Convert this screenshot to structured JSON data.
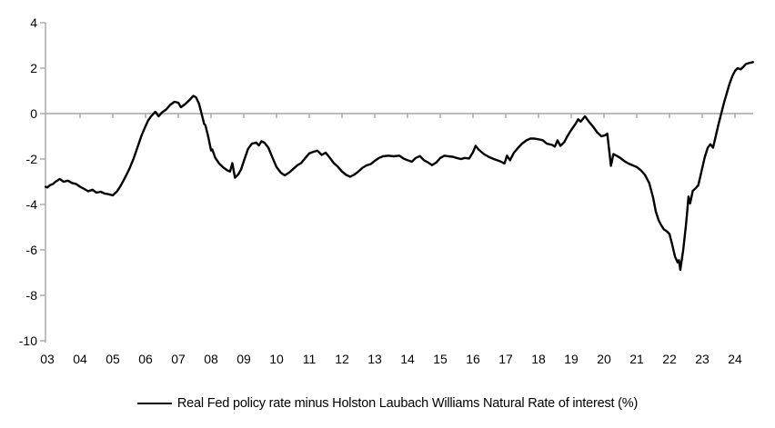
{
  "legend": {
    "label": "Real Fed policy rate minus Holston Laubach Williams Natural Rate of interest (%)"
  },
  "chart_data": {
    "type": "line",
    "title": "",
    "xlabel": "",
    "ylabel": "",
    "ylim": [
      -10,
      4
    ],
    "xlim": [
      2002.94,
      2024.6
    ],
    "grid": false,
    "zero_line": true,
    "legend_position": "bottom",
    "axis_color": "#a6a6a6",
    "text_color": "#000000",
    "y_ticks": [
      "4",
      "2",
      "0",
      "-2",
      "-4",
      "-6",
      "-8",
      "-10"
    ],
    "y_tick_values": [
      4,
      2,
      0,
      -2,
      -4,
      -6,
      -8,
      -10
    ],
    "x_tick_labels": [
      "03",
      "04",
      "05",
      "06",
      "07",
      "08",
      "09",
      "10",
      "11",
      "12",
      "13",
      "14",
      "15",
      "16",
      "17",
      "18",
      "19",
      "20",
      "21",
      "22",
      "23",
      "24"
    ],
    "x_tick_years": [
      2003,
      2004,
      2005,
      2006,
      2007,
      2008,
      2009,
      2010,
      2011,
      2012,
      2013,
      2014,
      2015,
      2016,
      2017,
      2018,
      2019,
      2020,
      2021,
      2022,
      2023,
      2024
    ],
    "series": [
      {
        "name": "Real Fed policy rate minus Holston Laubach Williams Natural Rate of interest (%)",
        "color": "#000000",
        "points": [
          [
            2002.95,
            -3.22
          ],
          [
            2003.0,
            -3.25
          ],
          [
            2003.08,
            -3.15
          ],
          [
            2003.17,
            -3.1
          ],
          [
            2003.25,
            -3.0
          ],
          [
            2003.38,
            -2.88
          ],
          [
            2003.5,
            -3.0
          ],
          [
            2003.63,
            -2.95
          ],
          [
            2003.75,
            -3.05
          ],
          [
            2003.88,
            -3.1
          ],
          [
            2004.0,
            -3.22
          ],
          [
            2004.13,
            -3.32
          ],
          [
            2004.25,
            -3.42
          ],
          [
            2004.38,
            -3.35
          ],
          [
            2004.5,
            -3.48
          ],
          [
            2004.63,
            -3.44
          ],
          [
            2004.75,
            -3.52
          ],
          [
            2004.88,
            -3.55
          ],
          [
            2005.0,
            -3.6
          ],
          [
            2005.13,
            -3.42
          ],
          [
            2005.25,
            -3.15
          ],
          [
            2005.38,
            -2.8
          ],
          [
            2005.5,
            -2.45
          ],
          [
            2005.63,
            -2.0
          ],
          [
            2005.75,
            -1.5
          ],
          [
            2005.88,
            -0.95
          ],
          [
            2006.0,
            -0.55
          ],
          [
            2006.08,
            -0.3
          ],
          [
            2006.17,
            -0.12
          ],
          [
            2006.3,
            0.08
          ],
          [
            2006.4,
            -0.12
          ],
          [
            2006.5,
            0.05
          ],
          [
            2006.63,
            0.18
          ],
          [
            2006.75,
            0.38
          ],
          [
            2006.88,
            0.52
          ],
          [
            2007.0,
            0.48
          ],
          [
            2007.08,
            0.28
          ],
          [
            2007.21,
            0.42
          ],
          [
            2007.33,
            0.58
          ],
          [
            2007.46,
            0.78
          ],
          [
            2007.54,
            0.72
          ],
          [
            2007.63,
            0.45
          ],
          [
            2007.71,
            0.0
          ],
          [
            2007.79,
            -0.45
          ],
          [
            2007.83,
            -0.52
          ],
          [
            2007.92,
            -1.05
          ],
          [
            2008.0,
            -1.62
          ],
          [
            2008.04,
            -1.58
          ],
          [
            2008.13,
            -1.95
          ],
          [
            2008.25,
            -2.2
          ],
          [
            2008.38,
            -2.38
          ],
          [
            2008.5,
            -2.5
          ],
          [
            2008.58,
            -2.55
          ],
          [
            2008.65,
            -2.18
          ],
          [
            2008.73,
            -2.82
          ],
          [
            2008.83,
            -2.68
          ],
          [
            2008.92,
            -2.45
          ],
          [
            2009.0,
            -2.1
          ],
          [
            2009.13,
            -1.55
          ],
          [
            2009.25,
            -1.32
          ],
          [
            2009.38,
            -1.28
          ],
          [
            2009.46,
            -1.4
          ],
          [
            2009.54,
            -1.22
          ],
          [
            2009.63,
            -1.28
          ],
          [
            2009.75,
            -1.5
          ],
          [
            2009.88,
            -1.95
          ],
          [
            2010.0,
            -2.35
          ],
          [
            2010.13,
            -2.6
          ],
          [
            2010.25,
            -2.72
          ],
          [
            2010.38,
            -2.6
          ],
          [
            2010.5,
            -2.45
          ],
          [
            2010.63,
            -2.28
          ],
          [
            2010.75,
            -2.18
          ],
          [
            2010.88,
            -1.95
          ],
          [
            2011.0,
            -1.75
          ],
          [
            2011.13,
            -1.68
          ],
          [
            2011.25,
            -1.63
          ],
          [
            2011.38,
            -1.82
          ],
          [
            2011.5,
            -1.72
          ],
          [
            2011.63,
            -1.95
          ],
          [
            2011.75,
            -2.18
          ],
          [
            2011.88,
            -2.35
          ],
          [
            2012.0,
            -2.55
          ],
          [
            2012.13,
            -2.7
          ],
          [
            2012.25,
            -2.78
          ],
          [
            2012.38,
            -2.68
          ],
          [
            2012.5,
            -2.55
          ],
          [
            2012.63,
            -2.38
          ],
          [
            2012.75,
            -2.28
          ],
          [
            2012.88,
            -2.22
          ],
          [
            2013.0,
            -2.08
          ],
          [
            2013.13,
            -1.95
          ],
          [
            2013.25,
            -1.88
          ],
          [
            2013.42,
            -1.85
          ],
          [
            2013.58,
            -1.88
          ],
          [
            2013.75,
            -1.85
          ],
          [
            2013.88,
            -1.98
          ],
          [
            2014.0,
            -2.05
          ],
          [
            2014.13,
            -2.12
          ],
          [
            2014.25,
            -1.95
          ],
          [
            2014.38,
            -1.87
          ],
          [
            2014.5,
            -2.05
          ],
          [
            2014.63,
            -2.15
          ],
          [
            2014.75,
            -2.27
          ],
          [
            2014.88,
            -2.15
          ],
          [
            2015.0,
            -1.95
          ],
          [
            2015.13,
            -1.85
          ],
          [
            2015.25,
            -1.88
          ],
          [
            2015.38,
            -1.9
          ],
          [
            2015.5,
            -1.95
          ],
          [
            2015.63,
            -2.0
          ],
          [
            2015.75,
            -1.95
          ],
          [
            2015.88,
            -1.98
          ],
          [
            2016.0,
            -1.7
          ],
          [
            2016.08,
            -1.42
          ],
          [
            2016.17,
            -1.58
          ],
          [
            2016.33,
            -1.78
          ],
          [
            2016.5,
            -1.92
          ],
          [
            2016.67,
            -2.02
          ],
          [
            2016.83,
            -2.1
          ],
          [
            2016.96,
            -2.2
          ],
          [
            2017.04,
            -1.85
          ],
          [
            2017.13,
            -2.05
          ],
          [
            2017.25,
            -1.72
          ],
          [
            2017.38,
            -1.5
          ],
          [
            2017.5,
            -1.32
          ],
          [
            2017.63,
            -1.18
          ],
          [
            2017.75,
            -1.1
          ],
          [
            2017.88,
            -1.1
          ],
          [
            2018.0,
            -1.13
          ],
          [
            2018.13,
            -1.17
          ],
          [
            2018.25,
            -1.32
          ],
          [
            2018.42,
            -1.38
          ],
          [
            2018.5,
            -1.45
          ],
          [
            2018.58,
            -1.18
          ],
          [
            2018.67,
            -1.42
          ],
          [
            2018.79,
            -1.25
          ],
          [
            2018.88,
            -1.0
          ],
          [
            2019.0,
            -0.72
          ],
          [
            2019.13,
            -0.45
          ],
          [
            2019.21,
            -0.25
          ],
          [
            2019.29,
            -0.35
          ],
          [
            2019.42,
            -0.12
          ],
          [
            2019.54,
            -0.35
          ],
          [
            2019.67,
            -0.58
          ],
          [
            2019.79,
            -0.82
          ],
          [
            2019.92,
            -1.0
          ],
          [
            2020.04,
            -0.95
          ],
          [
            2020.1,
            -0.88
          ],
          [
            2020.17,
            -1.75
          ],
          [
            2020.21,
            -2.3
          ],
          [
            2020.29,
            -1.78
          ],
          [
            2020.38,
            -1.85
          ],
          [
            2020.5,
            -1.95
          ],
          [
            2020.63,
            -2.1
          ],
          [
            2020.75,
            -2.2
          ],
          [
            2020.88,
            -2.28
          ],
          [
            2021.0,
            -2.35
          ],
          [
            2021.13,
            -2.5
          ],
          [
            2021.25,
            -2.7
          ],
          [
            2021.38,
            -3.05
          ],
          [
            2021.5,
            -3.7
          ],
          [
            2021.58,
            -4.3
          ],
          [
            2021.67,
            -4.7
          ],
          [
            2021.75,
            -4.92
          ],
          [
            2021.83,
            -5.1
          ],
          [
            2021.92,
            -5.18
          ],
          [
            2022.0,
            -5.3
          ],
          [
            2022.08,
            -5.75
          ],
          [
            2022.17,
            -6.3
          ],
          [
            2022.25,
            -6.55
          ],
          [
            2022.29,
            -6.45
          ],
          [
            2022.33,
            -6.88
          ],
          [
            2022.42,
            -6.0
          ],
          [
            2022.5,
            -4.95
          ],
          [
            2022.54,
            -4.35
          ],
          [
            2022.58,
            -3.65
          ],
          [
            2022.63,
            -3.95
          ],
          [
            2022.71,
            -3.4
          ],
          [
            2022.79,
            -3.3
          ],
          [
            2022.88,
            -3.15
          ],
          [
            2023.0,
            -2.4
          ],
          [
            2023.08,
            -1.9
          ],
          [
            2023.17,
            -1.5
          ],
          [
            2023.25,
            -1.35
          ],
          [
            2023.33,
            -1.5
          ],
          [
            2023.42,
            -0.95
          ],
          [
            2023.5,
            -0.45
          ],
          [
            2023.58,
            0.0
          ],
          [
            2023.67,
            0.5
          ],
          [
            2023.75,
            0.9
          ],
          [
            2023.83,
            1.3
          ],
          [
            2023.92,
            1.65
          ],
          [
            2024.0,
            1.88
          ],
          [
            2024.08,
            2.0
          ],
          [
            2024.17,
            1.95
          ],
          [
            2024.25,
            2.05
          ],
          [
            2024.33,
            2.18
          ],
          [
            2024.42,
            2.22
          ],
          [
            2024.5,
            2.25
          ],
          [
            2024.55,
            2.27
          ]
        ]
      }
    ]
  }
}
